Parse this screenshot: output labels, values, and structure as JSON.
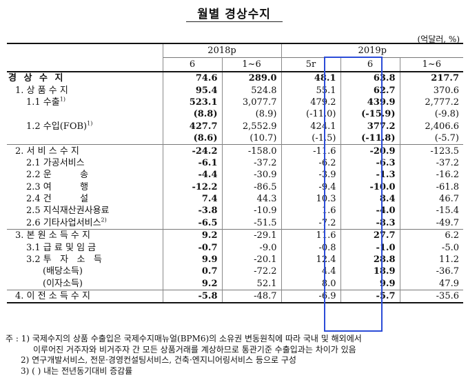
{
  "title": "월별 경상수지",
  "unit": "(억달러, %)",
  "header": {
    "years": [
      "2018p",
      "2019p"
    ],
    "periods": [
      "6",
      "1~6",
      "5r",
      "6",
      "1~6"
    ]
  },
  "rows": [
    {
      "label": "경 상 수 지",
      "bold_label": true,
      "vals": [
        "74.6",
        "289.0",
        "48.1",
        "63.8",
        "217.7"
      ]
    },
    {
      "label": "1. 상 품 수 지",
      "vals": [
        "95.4",
        "524.8",
        "55.1",
        "62.7",
        "370.6"
      ]
    },
    {
      "label": "1.1 수출",
      "sup": "1)",
      "vals": [
        "523.1",
        "3,077.7",
        "479.2",
        "439.9",
        "2,777.2"
      ]
    },
    {
      "label": "",
      "vals": [
        "(8.8)",
        "(8.9)",
        "(-11.0)",
        "(-15.9)",
        "(-9.8)"
      ]
    },
    {
      "label": "1.2 수입(FOB)",
      "sup": "1)",
      "vals": [
        "427.7",
        "2,552.9",
        "424.1",
        "377.2",
        "2,406.6"
      ]
    },
    {
      "label": "",
      "vals": [
        "(8.6)",
        "(10.7)",
        "(-1.5)",
        "(-11.8)",
        "(-5.7)"
      ]
    },
    {
      "label": "2. 서 비 스 수 지",
      "vals": [
        "-24.2",
        "-158.0",
        "-11.6",
        "-20.9",
        "-123.5"
      ]
    },
    {
      "label": "2.1 가공서비스",
      "vals": [
        "-6.1",
        "-37.2",
        "-6.2",
        "-6.3",
        "-37.2"
      ]
    },
    {
      "label": "2.2 운          송",
      "vals": [
        "-4.4",
        "-30.9",
        "-3.9",
        "-1.3",
        "-16.2"
      ]
    },
    {
      "label": "2.3 여          행",
      "vals": [
        "-12.2",
        "-86.5",
        "-9.4",
        "-10.0",
        "-61.8"
      ]
    },
    {
      "label": "2.4 건          설",
      "vals": [
        "7.4",
        "44.3",
        "10.3",
        "8.4",
        "46.7"
      ]
    },
    {
      "label": "2.5 지식재산권사용료",
      "vals": [
        "-3.8",
        "-10.9",
        "1.6",
        "-4.0",
        "-15.4"
      ]
    },
    {
      "label": "2.6 기타사업서비스",
      "sup": "2)",
      "vals": [
        "-6.5",
        "-51.5",
        "-7.2",
        "-8.3",
        "-49.7"
      ]
    },
    {
      "label": "3. 본 원 소 득 수 지",
      "vals": [
        "9.2",
        "-29.1",
        "11.6",
        "27.7",
        "6.2"
      ]
    },
    {
      "label": "3.1 급 료 및 임 금",
      "vals": [
        "-0.7",
        "-9.0",
        "-0.8",
        "-1.0",
        "-5.0"
      ]
    },
    {
      "label": "3.2 투   자   소   득",
      "vals": [
        "9.9",
        "-20.1",
        "12.4",
        "28.8",
        "11.2"
      ]
    },
    {
      "label": "(배당소득)",
      "vals": [
        "0.7",
        "-72.2",
        "4.4",
        "18.9",
        "-36.7"
      ]
    },
    {
      "label": "(이자소득)",
      "vals": [
        "9.2",
        "52.1",
        "8.0",
        "9.9",
        "47.9"
      ]
    },
    {
      "label": "4. 이 전 소 득 수 지",
      "vals": [
        "-5.8",
        "-48.7",
        "-6.9",
        "-5.7",
        "-35.6"
      ]
    }
  ],
  "notes": [
    "주 : 1) 국제수지의 상품 수출입은 국제수지매뉴얼(BPM6)의 소유권 변동원칙에 따라 국내 및 해외에서",
    "이루어진 거주자와 비거주자 간 모든 상품거래를 계상하므로 통관기준 수출입과는 차이가 있음",
    "2) 연구개발서비스, 전문·경영컨설팅서비스, 건축·엔지니어링서비스 등으로 구성",
    "3) (  ) 내는 전년동기대비 증감률"
  ]
}
